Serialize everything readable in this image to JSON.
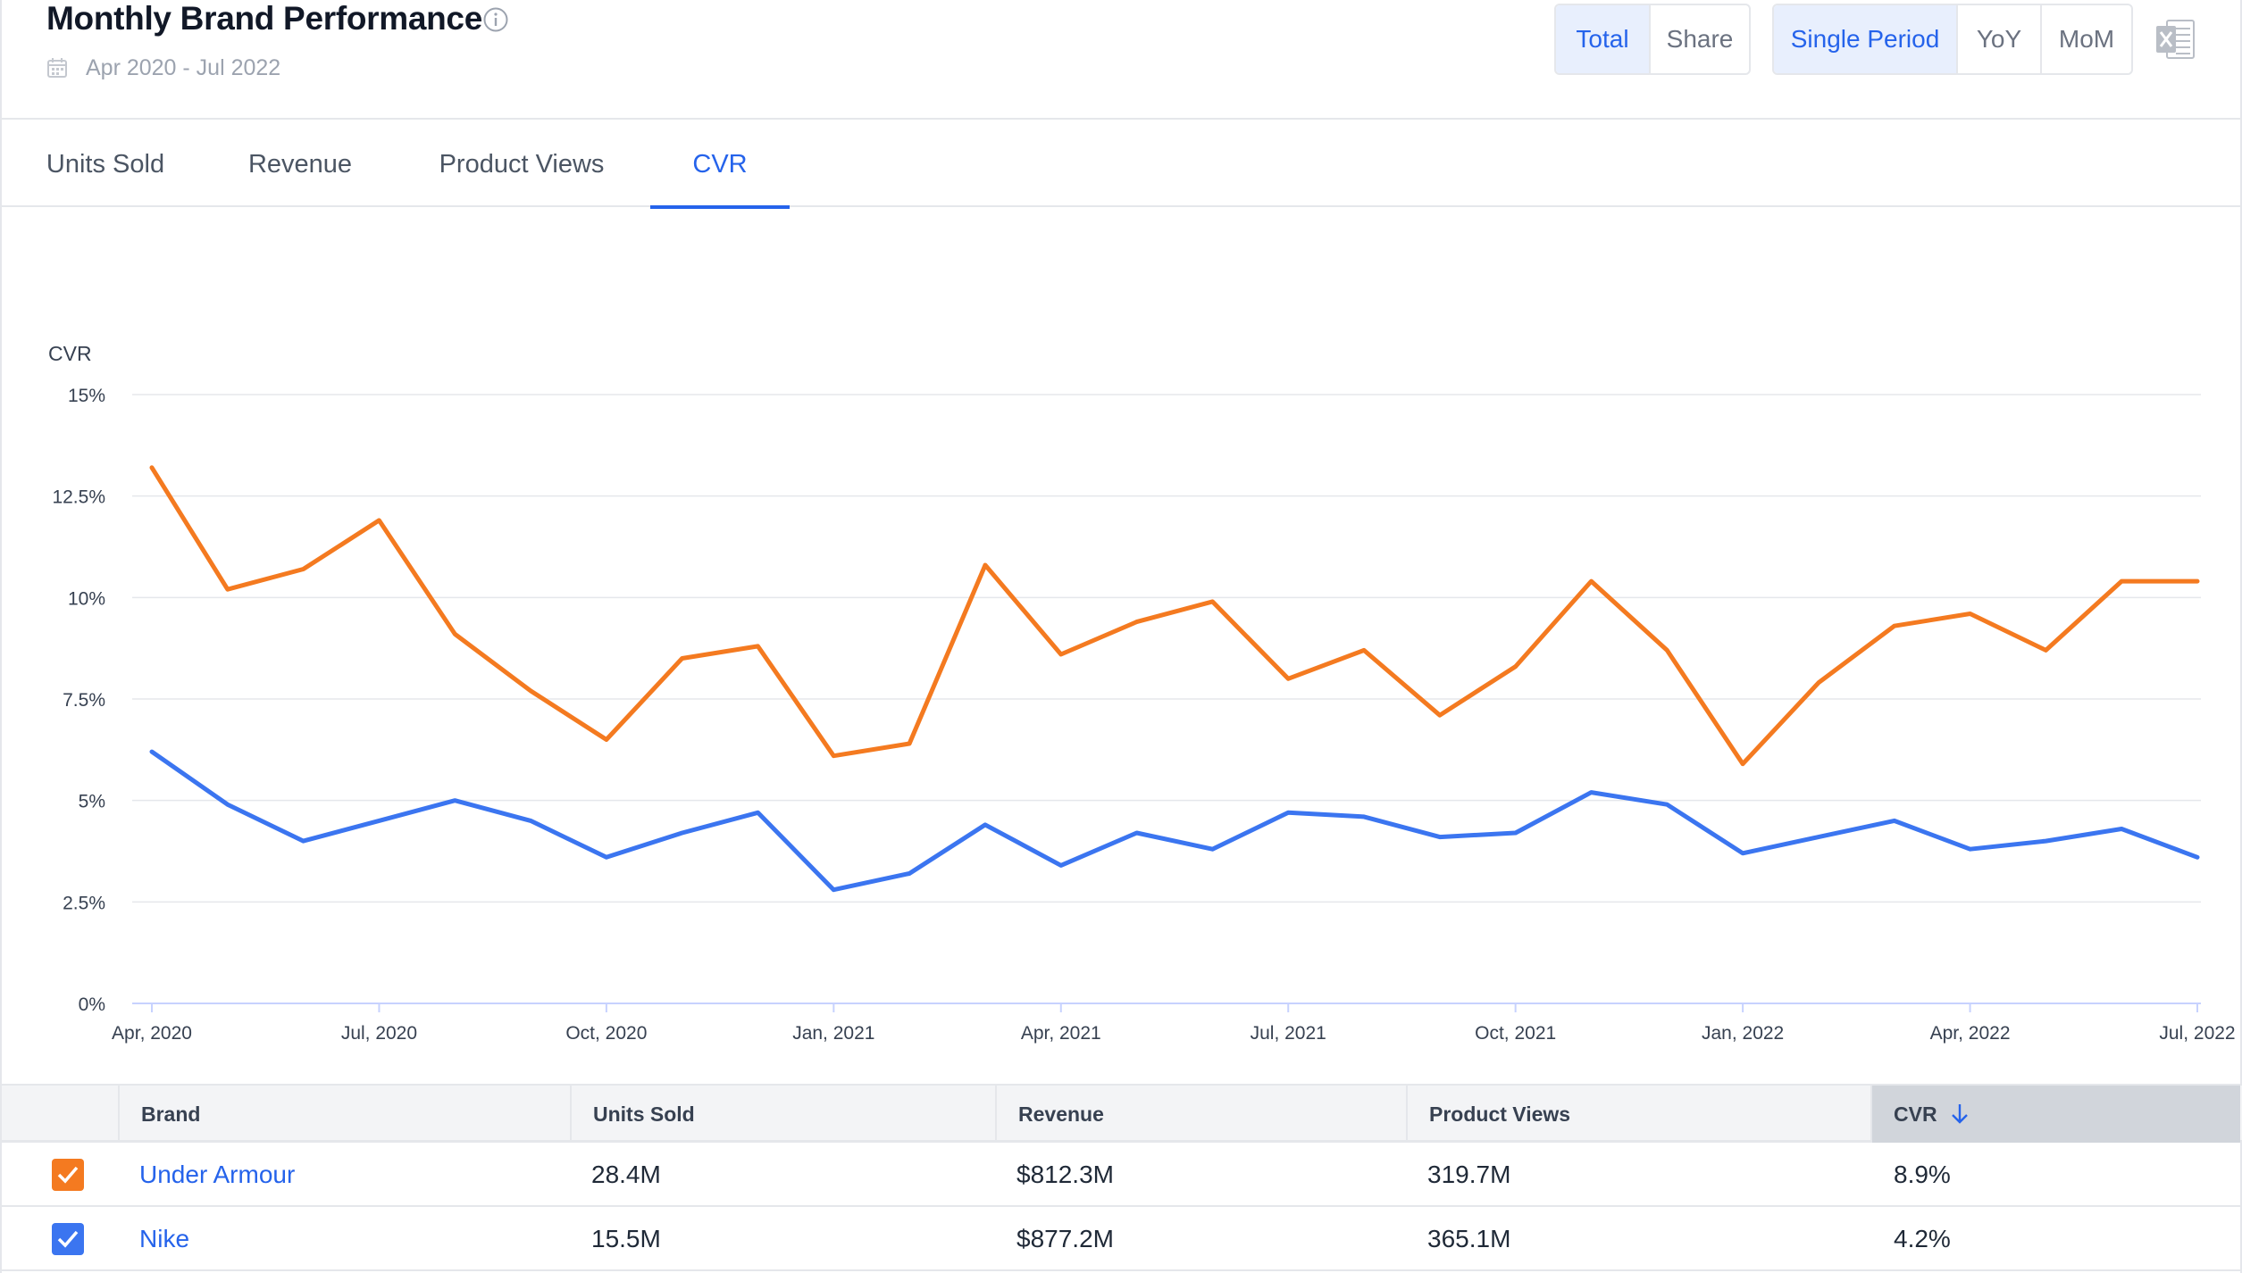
{
  "header": {
    "title": "Monthly Brand Performance",
    "date_range": "Apr 2020 - Jul 2022",
    "mode_buttons": [
      {
        "label": "Total",
        "active": true
      },
      {
        "label": "Share",
        "active": false
      }
    ],
    "period_buttons": [
      {
        "label": "Single Period",
        "active": true
      },
      {
        "label": "YoY",
        "active": false
      },
      {
        "label": "MoM",
        "active": false
      }
    ],
    "icons": {
      "info": "info-icon",
      "date": "calendar-icon",
      "export": "excel-export-icon"
    }
  },
  "tabs": [
    {
      "label": "Units Sold",
      "active": false
    },
    {
      "label": "Revenue",
      "active": false
    },
    {
      "label": "Product Views",
      "active": false
    },
    {
      "label": "CVR",
      "active": true
    }
  ],
  "chart_data": {
    "type": "line",
    "ylabel": "CVR",
    "ylim": [
      0,
      15
    ],
    "y_ticks": [
      "0%",
      "2.5%",
      "5%",
      "7.5%",
      "10%",
      "12.5%",
      "15%"
    ],
    "x": [
      "Apr, 2020",
      "May, 2020",
      "Jun, 2020",
      "Jul, 2020",
      "Aug, 2020",
      "Sep, 2020",
      "Oct, 2020",
      "Nov, 2020",
      "Dec, 2020",
      "Jan, 2021",
      "Feb, 2021",
      "Mar, 2021",
      "Apr, 2021",
      "May, 2021",
      "Jun, 2021",
      "Jul, 2021",
      "Aug, 2021",
      "Sep, 2021",
      "Oct, 2021",
      "Nov, 2021",
      "Dec, 2021",
      "Jan, 2022",
      "Feb, 2022",
      "Mar, 2022",
      "Apr, 2022",
      "May, 2022",
      "Jun, 2022",
      "Jul, 2022"
    ],
    "x_tick_labels": [
      "Apr, 2020",
      "Jul, 2020",
      "Oct, 2020",
      "Jan, 2021",
      "Apr, 2021",
      "Jul, 2021",
      "Oct, 2021",
      "Jan, 2022",
      "Apr, 2022",
      "Jul, 2022"
    ],
    "grid": true,
    "series": [
      {
        "color": "#f47a20",
        "values": [
          13.2,
          10.2,
          10.7,
          11.9,
          9.1,
          7.7,
          6.5,
          8.5,
          8.8,
          6.1,
          6.4,
          10.8,
          8.6,
          9.4,
          9.9,
          8.0,
          8.7,
          7.1,
          8.3,
          10.4,
          8.7,
          5.9,
          7.9,
          9.3,
          9.6,
          8.7,
          10.4,
          10.4
        ]
      },
      {
        "color": "#3b75f0",
        "values": [
          6.2,
          4.9,
          4.0,
          4.5,
          5.0,
          4.5,
          3.6,
          4.2,
          4.7,
          2.8,
          3.2,
          4.4,
          3.4,
          4.2,
          3.8,
          4.7,
          4.6,
          4.1,
          4.2,
          5.2,
          4.9,
          3.7,
          4.1,
          4.5,
          3.8,
          4.0,
          4.3,
          3.6
        ]
      }
    ]
  },
  "table": {
    "headers": [
      "",
      "Brand",
      "Units Sold",
      "Revenue",
      "Product Views",
      "CVR"
    ],
    "sorted_column": "CVR",
    "rows": [
      {
        "brand": "Under Armour",
        "units_sold": "28.4M",
        "revenue": "$812.3M",
        "product_views": "319.7M",
        "cvr": "8.9%",
        "checked": true,
        "color": "#f47a20"
      },
      {
        "brand": "Nike",
        "units_sold": "15.5M",
        "revenue": "$877.2M",
        "product_views": "365.1M",
        "cvr": "4.2%",
        "checked": true,
        "color": "#3b75f0"
      }
    ]
  }
}
